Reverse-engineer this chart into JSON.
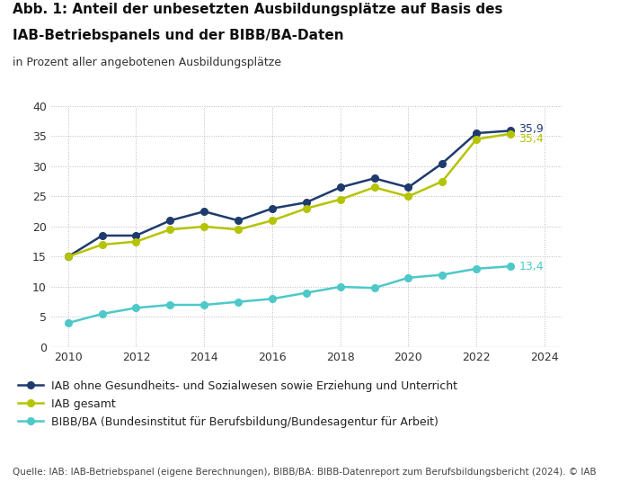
{
  "title_line1": "Abb. 1: Anteil der unbesetzten Ausbildungsplätze auf Basis des",
  "title_line2": "IAB-Betriebspanels und der BIBB/BA-Daten",
  "subtitle": "in Prozent aller angebotenen Ausbildungsplätze",
  "source": "Quelle: IAB: IAB-Betriebspanel (eigene Berechnungen), BIBB/BA: BIBB-Datenreport zum Berufsbildungsbericht (2024). © IAB",
  "years": [
    2010,
    2011,
    2012,
    2013,
    2014,
    2015,
    2016,
    2017,
    2018,
    2019,
    2020,
    2021,
    2022,
    2023
  ],
  "iab_ohne": [
    15.0,
    18.5,
    18.5,
    21.0,
    22.5,
    21.0,
    23.0,
    24.0,
    26.5,
    28.0,
    26.5,
    30.5,
    35.5,
    35.9
  ],
  "iab_gesamt": [
    15.0,
    17.0,
    17.5,
    19.5,
    20.0,
    19.5,
    21.0,
    23.0,
    24.5,
    26.5,
    25.0,
    27.5,
    34.5,
    35.4
  ],
  "bibb_ba": [
    4.0,
    5.5,
    6.5,
    7.0,
    7.0,
    7.5,
    8.0,
    9.0,
    10.0,
    9.8,
    11.5,
    12.0,
    13.0,
    13.4
  ],
  "color_iab_ohne": "#1f3b6e",
  "color_iab_gesamt": "#b5c400",
  "color_bibb_ba": "#4ec8c8",
  "ylim": [
    0,
    40
  ],
  "yticks": [
    0,
    5,
    10,
    15,
    20,
    25,
    30,
    35,
    40
  ],
  "xlim": [
    2009.5,
    2024.5
  ],
  "xticks": [
    2010,
    2012,
    2014,
    2016,
    2018,
    2020,
    2022,
    2024
  ],
  "legend_iab_ohne": "IAB ohne Gesundheits- und Sozialwesen sowie Erziehung und Unterricht",
  "legend_iab_gesamt": "IAB gesamt",
  "legend_bibb_ba": "BIBB/BA (Bundesinstitut für Berufsbildung/Bundesagentur für Arbeit)",
  "label_iab_ohne": "35,9",
  "label_iab_gesamt": "35,4",
  "label_bibb_ba": "13,4",
  "bg_color": "#ffffff",
  "plot_bg_color": "#ffffff",
  "title_fontsize": 11,
  "subtitle_fontsize": 9,
  "tick_fontsize": 9,
  "legend_fontsize": 9,
  "source_fontsize": 7.5
}
